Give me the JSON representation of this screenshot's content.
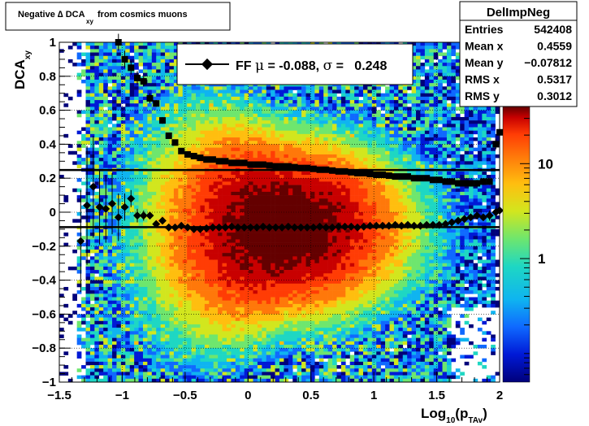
{
  "chart_data": {
    "type": "heatmap",
    "title_main": "Negative ∆ DCA",
    "title_sub": "xy",
    "title_tail": "from cosmics muons",
    "xlabel_main": "Log",
    "xlabel_sub1": "10",
    "xlabel_mid": "(p",
    "xlabel_sub2": "TAv",
    "xlabel_end": ")",
    "ylabel_main": "DCA",
    "ylabel_sub": "xy",
    "xlim": [
      -1.5,
      2
    ],
    "ylim": [
      -1,
      1
    ],
    "x_ticks": [
      -1.5,
      -1,
      -0.5,
      0,
      0.5,
      1,
      1.5,
      2
    ],
    "x_tick_labels": [
      "−1.5",
      "−1",
      "−0.5",
      "0",
      "0.5",
      "1",
      "1.5",
      "2"
    ],
    "y_ticks": [
      -1,
      -0.8,
      -0.6,
      -0.4,
      -0.2,
      0,
      0.2,
      0.4,
      0.6,
      0.8,
      1
    ],
    "y_tick_labels": [
      "−1",
      "−0.8",
      "−0.6",
      "−0.4",
      "−0.2",
      "0",
      "0.2",
      "0.4",
      "0.6",
      "0.8",
      "1"
    ],
    "grid": true,
    "colorbar": {
      "scale": "log",
      "labels": [
        "1",
        "10"
      ],
      "label_values": [
        1,
        10
      ],
      "range": [
        0.05,
        40
      ]
    },
    "stats": {
      "name": "DelImpNeg",
      "rows": [
        {
          "label": "Entries",
          "value": "542408"
        },
        {
          "label": "Mean x",
          "value": "0.4559"
        },
        {
          "label": "Mean y",
          "value": "−0.07812"
        },
        {
          "label": "RMS x",
          "value": "0.5317"
        },
        {
          "label": "RMS y",
          "value": "0.3012"
        }
      ]
    },
    "legend": {
      "entry_prefix": "FF",
      "mu_symbol": "μ",
      "mu_text": " = -0.088, ",
      "sigma_symbol": "σ",
      "sigma_text": " =   0.248"
    },
    "fit_lines": {
      "mean": -0.088,
      "sigma": 0.248
    },
    "mean_points": [
      {
        "x": -1.33,
        "y": -0.17,
        "e": 0.3
      },
      {
        "x": -1.28,
        "y": 0.04,
        "e": 0.35
      },
      {
        "x": -1.23,
        "y": 0.15,
        "e": 0.3
      },
      {
        "x": -1.18,
        "y": 0.03,
        "e": 0.22
      },
      {
        "x": -1.13,
        "y": 0.02,
        "e": 0.2
      },
      {
        "x": -1.08,
        "y": 0.05,
        "e": 0.18
      },
      {
        "x": -1.03,
        "y": -0.03,
        "e": 0.14
      },
      {
        "x": -0.98,
        "y": 0.03,
        "e": 0.08
      },
      {
        "x": -0.93,
        "y": 0.08,
        "e": 0.05
      },
      {
        "x": -0.88,
        "y": -0.02,
        "e": 0.04
      },
      {
        "x": -0.83,
        "y": -0.02,
        "e": 0.03
      },
      {
        "x": -0.78,
        "y": -0.02,
        "e": 0.02
      },
      {
        "x": -0.73,
        "y": -0.07,
        "e": 0.02
      },
      {
        "x": -0.68,
        "y": -0.05,
        "e": 0.015
      },
      {
        "x": -0.63,
        "y": -0.09,
        "e": 0.01
      },
      {
        "x": -0.58,
        "y": -0.09,
        "e": 0.01
      },
      {
        "x": -0.53,
        "y": -0.08,
        "e": 0.01
      },
      {
        "x": -0.48,
        "y": -0.09,
        "e": 0.01
      },
      {
        "x": -0.43,
        "y": -0.1,
        "e": 0.01
      },
      {
        "x": -0.38,
        "y": -0.1,
        "e": 0.01
      },
      {
        "x": -0.33,
        "y": -0.095,
        "e": 0.01
      },
      {
        "x": -0.28,
        "y": -0.09,
        "e": 0.01
      },
      {
        "x": -0.23,
        "y": -0.09,
        "e": 0.01
      },
      {
        "x": -0.18,
        "y": -0.09,
        "e": 0.01
      },
      {
        "x": -0.13,
        "y": -0.085,
        "e": 0.01
      },
      {
        "x": -0.08,
        "y": -0.09,
        "e": 0.01
      },
      {
        "x": -0.03,
        "y": -0.09,
        "e": 0.01
      },
      {
        "x": 0.02,
        "y": -0.09,
        "e": 0.01
      },
      {
        "x": 0.07,
        "y": -0.09,
        "e": 0.01
      },
      {
        "x": 0.12,
        "y": -0.085,
        "e": 0.01
      },
      {
        "x": 0.17,
        "y": -0.09,
        "e": 0.01
      },
      {
        "x": 0.22,
        "y": -0.09,
        "e": 0.01
      },
      {
        "x": 0.27,
        "y": -0.09,
        "e": 0.01
      },
      {
        "x": 0.32,
        "y": -0.085,
        "e": 0.01
      },
      {
        "x": 0.37,
        "y": -0.09,
        "e": 0.01
      },
      {
        "x": 0.42,
        "y": -0.09,
        "e": 0.01
      },
      {
        "x": 0.47,
        "y": -0.09,
        "e": 0.01
      },
      {
        "x": 0.52,
        "y": -0.09,
        "e": 0.01
      },
      {
        "x": 0.57,
        "y": -0.085,
        "e": 0.01
      },
      {
        "x": 0.62,
        "y": -0.09,
        "e": 0.01
      },
      {
        "x": 0.67,
        "y": -0.09,
        "e": 0.01
      },
      {
        "x": 0.72,
        "y": -0.085,
        "e": 0.01
      },
      {
        "x": 0.77,
        "y": -0.085,
        "e": 0.01
      },
      {
        "x": 0.82,
        "y": -0.085,
        "e": 0.01
      },
      {
        "x": 0.87,
        "y": -0.09,
        "e": 0.01
      },
      {
        "x": 0.92,
        "y": -0.085,
        "e": 0.01
      },
      {
        "x": 0.97,
        "y": -0.08,
        "e": 0.01
      },
      {
        "x": 1.02,
        "y": -0.08,
        "e": 0.01
      },
      {
        "x": 1.07,
        "y": -0.08,
        "e": 0.01
      },
      {
        "x": 1.12,
        "y": -0.08,
        "e": 0.01
      },
      {
        "x": 1.17,
        "y": -0.075,
        "e": 0.01
      },
      {
        "x": 1.22,
        "y": -0.08,
        "e": 0.01
      },
      {
        "x": 1.27,
        "y": -0.075,
        "e": 0.01
      },
      {
        "x": 1.32,
        "y": -0.08,
        "e": 0.01
      },
      {
        "x": 1.37,
        "y": -0.08,
        "e": 0.01
      },
      {
        "x": 1.42,
        "y": -0.075,
        "e": 0.01
      },
      {
        "x": 1.47,
        "y": -0.075,
        "e": 0.01
      },
      {
        "x": 1.52,
        "y": -0.075,
        "e": 0.01
      },
      {
        "x": 1.57,
        "y": -0.07,
        "e": 0.01
      },
      {
        "x": 1.62,
        "y": -0.06,
        "e": 0.01
      },
      {
        "x": 1.67,
        "y": -0.05,
        "e": 0.015
      },
      {
        "x": 1.72,
        "y": -0.04,
        "e": 0.015
      },
      {
        "x": 1.77,
        "y": -0.03,
        "e": 0.02
      },
      {
        "x": 1.82,
        "y": -0.02,
        "e": 0.02
      },
      {
        "x": 1.87,
        "y": -0.03,
        "e": 0.02
      },
      {
        "x": 1.92,
        "y": -0.02,
        "e": 0.03
      },
      {
        "x": 1.97,
        "y": 0.0,
        "e": 0.03
      },
      {
        "x": 2.0,
        "y": 0.01,
        "e": 0.03
      }
    ],
    "sigma_points": [
      {
        "x": -1.03,
        "y": 1.0,
        "e": 0.05
      },
      {
        "x": -0.98,
        "y": 0.9,
        "e": 0.05
      },
      {
        "x": -0.93,
        "y": 0.85,
        "e": 0.04
      },
      {
        "x": -0.88,
        "y": 0.79,
        "e": 0.04
      },
      {
        "x": -0.83,
        "y": 0.77,
        "e": 0.03
      },
      {
        "x": -0.78,
        "y": 0.67,
        "e": 0.03
      },
      {
        "x": -0.73,
        "y": 0.64,
        "e": 0.02
      },
      {
        "x": -0.68,
        "y": 0.54,
        "e": 0.02
      },
      {
        "x": -0.63,
        "y": 0.45,
        "e": 0.01
      },
      {
        "x": -0.58,
        "y": 0.41,
        "e": 0.01
      },
      {
        "x": -0.53,
        "y": 0.36,
        "e": 0.01
      },
      {
        "x": -0.48,
        "y": 0.34,
        "e": 0.01
      },
      {
        "x": -0.43,
        "y": 0.33,
        "e": 0.01
      },
      {
        "x": -0.38,
        "y": 0.32,
        "e": 0.01
      },
      {
        "x": -0.33,
        "y": 0.31,
        "e": 0.01
      },
      {
        "x": -0.28,
        "y": 0.31,
        "e": 0.01
      },
      {
        "x": -0.23,
        "y": 0.3,
        "e": 0.01
      },
      {
        "x": -0.18,
        "y": 0.3,
        "e": 0.01
      },
      {
        "x": -0.13,
        "y": 0.29,
        "e": 0.01
      },
      {
        "x": -0.08,
        "y": 0.29,
        "e": 0.01
      },
      {
        "x": -0.03,
        "y": 0.29,
        "e": 0.01
      },
      {
        "x": 0.02,
        "y": 0.28,
        "e": 0.01
      },
      {
        "x": 0.07,
        "y": 0.28,
        "e": 0.01
      },
      {
        "x": 0.12,
        "y": 0.28,
        "e": 0.01
      },
      {
        "x": 0.17,
        "y": 0.275,
        "e": 0.01
      },
      {
        "x": 0.22,
        "y": 0.27,
        "e": 0.01
      },
      {
        "x": 0.27,
        "y": 0.27,
        "e": 0.01
      },
      {
        "x": 0.32,
        "y": 0.27,
        "e": 0.01
      },
      {
        "x": 0.37,
        "y": 0.265,
        "e": 0.01
      },
      {
        "x": 0.42,
        "y": 0.26,
        "e": 0.01
      },
      {
        "x": 0.47,
        "y": 0.26,
        "e": 0.01
      },
      {
        "x": 0.52,
        "y": 0.255,
        "e": 0.01
      },
      {
        "x": 0.57,
        "y": 0.25,
        "e": 0.01
      },
      {
        "x": 0.62,
        "y": 0.25,
        "e": 0.01
      },
      {
        "x": 0.67,
        "y": 0.245,
        "e": 0.01
      },
      {
        "x": 0.72,
        "y": 0.24,
        "e": 0.01
      },
      {
        "x": 0.77,
        "y": 0.24,
        "e": 0.01
      },
      {
        "x": 0.82,
        "y": 0.235,
        "e": 0.01
      },
      {
        "x": 0.87,
        "y": 0.23,
        "e": 0.01
      },
      {
        "x": 0.92,
        "y": 0.23,
        "e": 0.01
      },
      {
        "x": 0.97,
        "y": 0.225,
        "e": 0.01
      },
      {
        "x": 1.02,
        "y": 0.22,
        "e": 0.01
      },
      {
        "x": 1.07,
        "y": 0.22,
        "e": 0.01
      },
      {
        "x": 1.12,
        "y": 0.215,
        "e": 0.01
      },
      {
        "x": 1.17,
        "y": 0.21,
        "e": 0.01
      },
      {
        "x": 1.22,
        "y": 0.21,
        "e": 0.01
      },
      {
        "x": 1.27,
        "y": 0.21,
        "e": 0.01
      },
      {
        "x": 1.32,
        "y": 0.2,
        "e": 0.01
      },
      {
        "x": 1.37,
        "y": 0.2,
        "e": 0.01
      },
      {
        "x": 1.42,
        "y": 0.2,
        "e": 0.01
      },
      {
        "x": 1.47,
        "y": 0.19,
        "e": 0.01
      },
      {
        "x": 1.52,
        "y": 0.19,
        "e": 0.01
      },
      {
        "x": 1.57,
        "y": 0.18,
        "e": 0.01
      },
      {
        "x": 1.62,
        "y": 0.18,
        "e": 0.015
      },
      {
        "x": 1.67,
        "y": 0.17,
        "e": 0.015
      },
      {
        "x": 1.72,
        "y": 0.17,
        "e": 0.015
      },
      {
        "x": 1.77,
        "y": 0.17,
        "e": 0.015
      },
      {
        "x": 1.82,
        "y": 0.17,
        "e": 0.02
      },
      {
        "x": 1.87,
        "y": 0.18,
        "e": 0.02
      },
      {
        "x": 1.92,
        "y": 0.18,
        "e": 0.02
      },
      {
        "x": 1.97,
        "y": 0.4,
        "e": 0.03
      },
      {
        "x": 2.0,
        "y": 0.47,
        "e": 0.03
      }
    ],
    "colors": {
      "palette": [
        "#00007a",
        "#0019d6",
        "#0f69ff",
        "#0fb4f0",
        "#1ed7c3",
        "#6ee66e",
        "#d2e61e",
        "#ffbe0f",
        "#ff780a",
        "#ff3c05",
        "#c80000",
        "#640000"
      ]
    }
  }
}
